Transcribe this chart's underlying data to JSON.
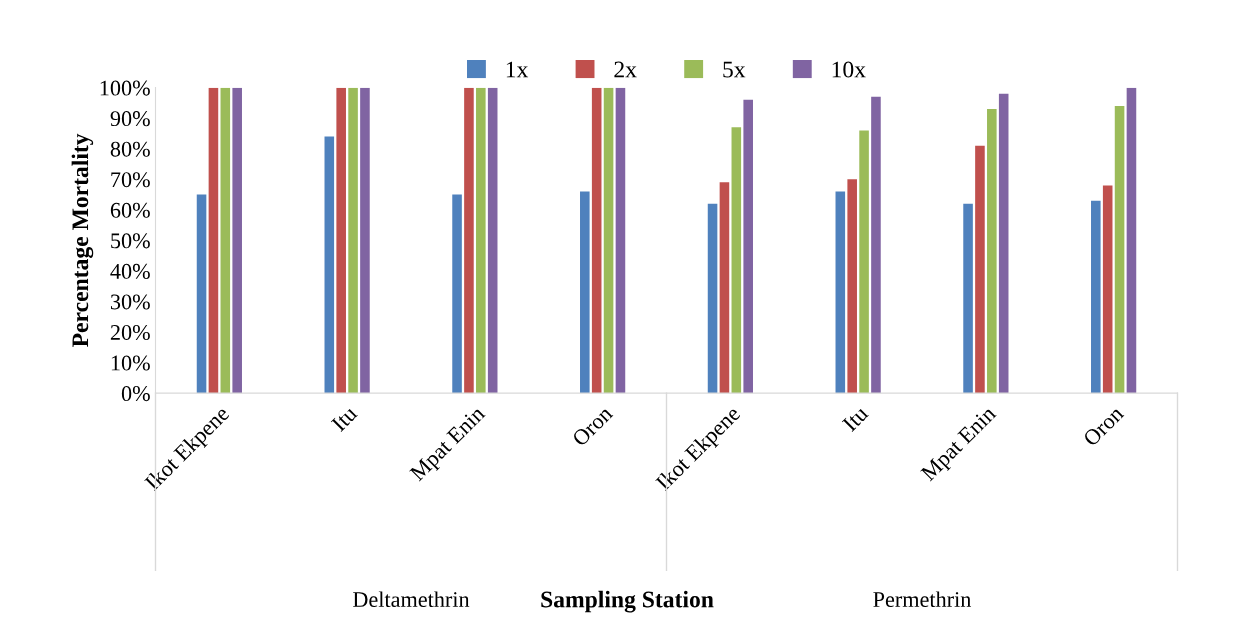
{
  "chart_data": {
    "type": "bar",
    "xlabel": "Sampling Station",
    "ylabel": "Percentage Mortality",
    "categories": [
      "Ikot Ekpene",
      "Itu",
      "Mpat Enin",
      "Oron",
      "Ikot Ekpene",
      "Itu",
      "Mpat Enin",
      "Oron"
    ],
    "series": [
      {
        "name": "1x",
        "color": "#4f81bd",
        "values": [
          65,
          84,
          65,
          66,
          62,
          66,
          62,
          63
        ]
      },
      {
        "name": "2x",
        "color": "#c0504d",
        "values": [
          100,
          100,
          100,
          100,
          69,
          70,
          81,
          68
        ]
      },
      {
        "name": "5x",
        "color": "#9bbb59",
        "values": [
          100,
          100,
          100,
          100,
          87,
          86,
          93,
          94
        ]
      },
      {
        "name": "10x",
        "color": "#8064a2",
        "values": [
          100,
          100,
          100,
          100,
          96,
          97,
          98,
          100
        ]
      }
    ],
    "annotations": [
      "Deltamethrin",
      "Permethrin"
    ],
    "ylim": [
      0,
      100
    ],
    "yticks": [
      {
        "value": 0,
        "label": "0%"
      },
      {
        "value": 10,
        "label": "10%"
      },
      {
        "value": 20,
        "label": "20%"
      },
      {
        "value": 30,
        "label": "30%"
      },
      {
        "value": 40,
        "label": "40%"
      },
      {
        "value": 50,
        "label": "50%"
      },
      {
        "value": 60,
        "label": "60%"
      },
      {
        "value": 70,
        "label": "70%"
      },
      {
        "value": 80,
        "label": "80%"
      },
      {
        "value": 90,
        "label": "90%"
      },
      {
        "value": 100,
        "label": "100%"
      }
    ],
    "grid": false,
    "legend": "top"
  }
}
